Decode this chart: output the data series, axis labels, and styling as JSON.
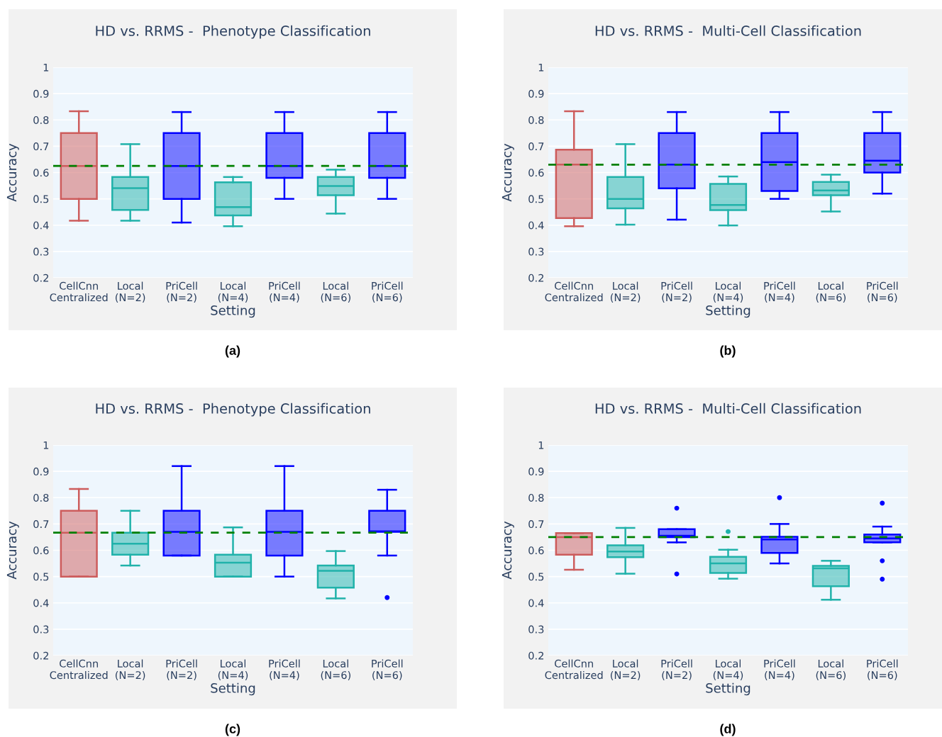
{
  "chart_data": [
    {
      "type": "box",
      "title": "HD vs. RRMS -  Phenotype Classification",
      "xlabel": "Setting",
      "ylabel": "Accuracy",
      "categories": [
        "CellCnn\nCentralized",
        "Local\n(N=2)",
        "PriCell\n(N=2)",
        "Local\n(N=4)",
        "PriCell\n(N=4)",
        "Local\n(N=6)",
        "PriCell\n(N=6)"
      ],
      "colors": [
        "#cd5c5c",
        "#20b2aa",
        "#0000ff",
        "#20b2aa",
        "#0000ff",
        "#20b2aa",
        "#0000ff"
      ],
      "boxes": [
        {
          "low": 0.417,
          "q1": 0.5,
          "median": 0.625,
          "q3": 0.75,
          "high": 0.833
        },
        {
          "low": 0.417,
          "q1": 0.458,
          "median": 0.541,
          "q3": 0.583,
          "high": 0.708
        },
        {
          "low": 0.41,
          "q1": 0.5,
          "median": 0.625,
          "q3": 0.75,
          "high": 0.83
        },
        {
          "low": 0.396,
          "q1": 0.437,
          "median": 0.469,
          "q3": 0.563,
          "high": 0.583
        },
        {
          "low": 0.5,
          "q1": 0.58,
          "median": 0.625,
          "q3": 0.75,
          "high": 0.83
        },
        {
          "low": 0.444,
          "q1": 0.514,
          "median": 0.549,
          "q3": 0.583,
          "high": 0.611
        },
        {
          "low": 0.5,
          "q1": 0.58,
          "median": 0.625,
          "q3": 0.75,
          "high": 0.83
        }
      ],
      "ylim": [
        0.2,
        1
      ],
      "yticks": [
        0.2,
        0.3,
        0.4,
        0.5,
        0.6,
        0.7,
        0.8,
        0.9,
        1
      ],
      "grid": "y",
      "ref_lines": [
        {
          "axis": "y",
          "value": 0.625,
          "color": "#008000",
          "line_style": "dashed"
        }
      ],
      "annotations": [
        "(a)"
      ]
    },
    {
      "type": "box",
      "title": "HD vs. RRMS -  Multi-Cell Classification",
      "xlabel": "Setting",
      "ylabel": "Accuracy",
      "categories": [
        "CellCnn\nCentralized",
        "Local\n(N=2)",
        "PriCell\n(N=2)",
        "Local\n(N=4)",
        "PriCell\n(N=4)",
        "Local\n(N=6)",
        "PriCell\n(N=6)"
      ],
      "colors": [
        "#cd5c5c",
        "#20b2aa",
        "#0000ff",
        "#20b2aa",
        "#0000ff",
        "#20b2aa",
        "#0000ff"
      ],
      "boxes": [
        {
          "low": 0.396,
          "q1": 0.427,
          "median": 0.63,
          "q3": 0.687,
          "high": 0.833
        },
        {
          "low": 0.402,
          "q1": 0.464,
          "median": 0.5,
          "q3": 0.583,
          "high": 0.708
        },
        {
          "low": 0.421,
          "q1": 0.54,
          "median": 0.63,
          "q3": 0.75,
          "high": 0.83
        },
        {
          "low": 0.399,
          "q1": 0.457,
          "median": 0.477,
          "q3": 0.557,
          "high": 0.585
        },
        {
          "low": 0.5,
          "q1": 0.53,
          "median": 0.64,
          "q3": 0.75,
          "high": 0.83
        },
        {
          "low": 0.452,
          "q1": 0.514,
          "median": 0.532,
          "q3": 0.564,
          "high": 0.592
        },
        {
          "low": 0.52,
          "q1": 0.6,
          "median": 0.645,
          "q3": 0.75,
          "high": 0.83
        }
      ],
      "ylim": [
        0.2,
        1
      ],
      "yticks": [
        0.2,
        0.3,
        0.4,
        0.5,
        0.6,
        0.7,
        0.8,
        0.9,
        1
      ],
      "grid": "y",
      "ref_lines": [
        {
          "axis": "y",
          "value": 0.63,
          "color": "#008000",
          "line_style": "dashed"
        }
      ],
      "annotations": [
        "(b)"
      ]
    },
    {
      "type": "box",
      "title": "HD vs. RRMS -  Phenotype Classification",
      "xlabel": "Setting",
      "ylabel": "Accuracy",
      "categories": [
        "CellCnn\nCentralized",
        "Local\n(N=2)",
        "PriCell\n(N=2)",
        "Local\n(N=4)",
        "PriCell\n(N=4)",
        "Local\n(N=6)",
        "PriCell\n(N=6)"
      ],
      "colors": [
        "#cd5c5c",
        "#20b2aa",
        "#0000ff",
        "#20b2aa",
        "#0000ff",
        "#20b2aa",
        "#0000ff"
      ],
      "boxes": [
        {
          "low": 0.5,
          "q1": 0.5,
          "median": 0.667,
          "q3": 0.75,
          "high": 0.833
        },
        {
          "low": 0.542,
          "q1": 0.583,
          "median": 0.625,
          "q3": 0.667,
          "high": 0.75
        },
        {
          "low": 0.58,
          "q1": 0.58,
          "median": 0.67,
          "q3": 0.75,
          "high": 0.92
        },
        {
          "low": 0.5,
          "q1": 0.5,
          "median": 0.553,
          "q3": 0.583,
          "high": 0.687
        },
        {
          "low": 0.5,
          "q1": 0.58,
          "median": 0.67,
          "q3": 0.75,
          "high": 0.92
        },
        {
          "low": 0.417,
          "q1": 0.458,
          "median": 0.522,
          "q3": 0.542,
          "high": 0.597
        },
        {
          "low": 0.58,
          "q1": 0.67,
          "median": 0.672,
          "q3": 0.75,
          "high": 0.83,
          "outliers": [
            0.42
          ]
        }
      ],
      "ylim": [
        0.2,
        1
      ],
      "yticks": [
        0.2,
        0.3,
        0.4,
        0.5,
        0.6,
        0.7,
        0.8,
        0.9,
        1
      ],
      "grid": "y",
      "marker": "circle",
      "ref_lines": [
        {
          "axis": "y",
          "value": 0.667,
          "color": "#008000",
          "line_style": "dashed"
        }
      ],
      "annotations": [
        "(c)"
      ]
    },
    {
      "type": "box",
      "title": "HD vs. RRMS -  Multi-Cell Classification",
      "xlabel": "Setting",
      "ylabel": "Accuracy",
      "categories": [
        "CellCnn\nCentralized",
        "Local\n(N=2)",
        "PriCell\n(N=2)",
        "Local\n(N=4)",
        "PriCell\n(N=4)",
        "Local\n(N=6)",
        "PriCell\n(N=6)"
      ],
      "colors": [
        "#cd5c5c",
        "#20b2aa",
        "#0000ff",
        "#20b2aa",
        "#0000ff",
        "#20b2aa",
        "#0000ff"
      ],
      "boxes": [
        {
          "low": 0.526,
          "q1": 0.583,
          "median": 0.65,
          "q3": 0.665,
          "high": 0.665
        },
        {
          "low": 0.511,
          "q1": 0.574,
          "median": 0.595,
          "q3": 0.619,
          "high": 0.685
        },
        {
          "low": 0.63,
          "q1": 0.65,
          "median": 0.655,
          "q3": 0.68,
          "high": 0.68,
          "outliers": [
            0.76,
            0.51
          ]
        },
        {
          "low": 0.492,
          "q1": 0.514,
          "median": 0.55,
          "q3": 0.575,
          "high": 0.602,
          "outliers": [
            0.671
          ]
        },
        {
          "low": 0.55,
          "q1": 0.59,
          "median": 0.641,
          "q3": 0.651,
          "high": 0.7,
          "outliers": [
            0.8
          ]
        },
        {
          "low": 0.412,
          "q1": 0.463,
          "median": 0.531,
          "q3": 0.541,
          "high": 0.56
        },
        {
          "low": 0.63,
          "q1": 0.63,
          "median": 0.645,
          "q3": 0.66,
          "high": 0.69,
          "outliers": [
            0.779,
            0.56,
            0.49
          ]
        }
      ],
      "ylim": [
        0.2,
        1
      ],
      "yticks": [
        0.2,
        0.3,
        0.4,
        0.5,
        0.6,
        0.7,
        0.8,
        0.9,
        1
      ],
      "grid": "y",
      "marker": "circle",
      "ref_lines": [
        {
          "axis": "y",
          "value": 0.65,
          "color": "#008000",
          "line_style": "dashed"
        }
      ],
      "annotations": [
        "(d)"
      ]
    }
  ]
}
